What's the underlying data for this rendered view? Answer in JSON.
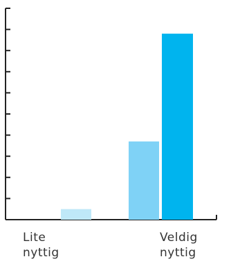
{
  "chart_data": {
    "type": "bar",
    "categories": [
      "",
      "",
      "",
      ""
    ],
    "values": [
      0,
      0.5,
      3.7,
      8.8
    ],
    "ylim": [
      0,
      10
    ],
    "yticks": [
      1,
      2,
      3,
      4,
      5,
      6,
      7,
      8,
      9,
      10
    ],
    "bar_colors": [
      "#bfe8f8",
      "#bfe8f8",
      "#7fd2f6",
      "#00b4ee"
    ],
    "grid": false,
    "legend": "none",
    "axis_color": "#222222",
    "axis_labels": [
      {
        "line1": "Lite",
        "line2": "nyttig"
      },
      {
        "line1": "Veldig",
        "line2": "nyttig"
      }
    ]
  }
}
